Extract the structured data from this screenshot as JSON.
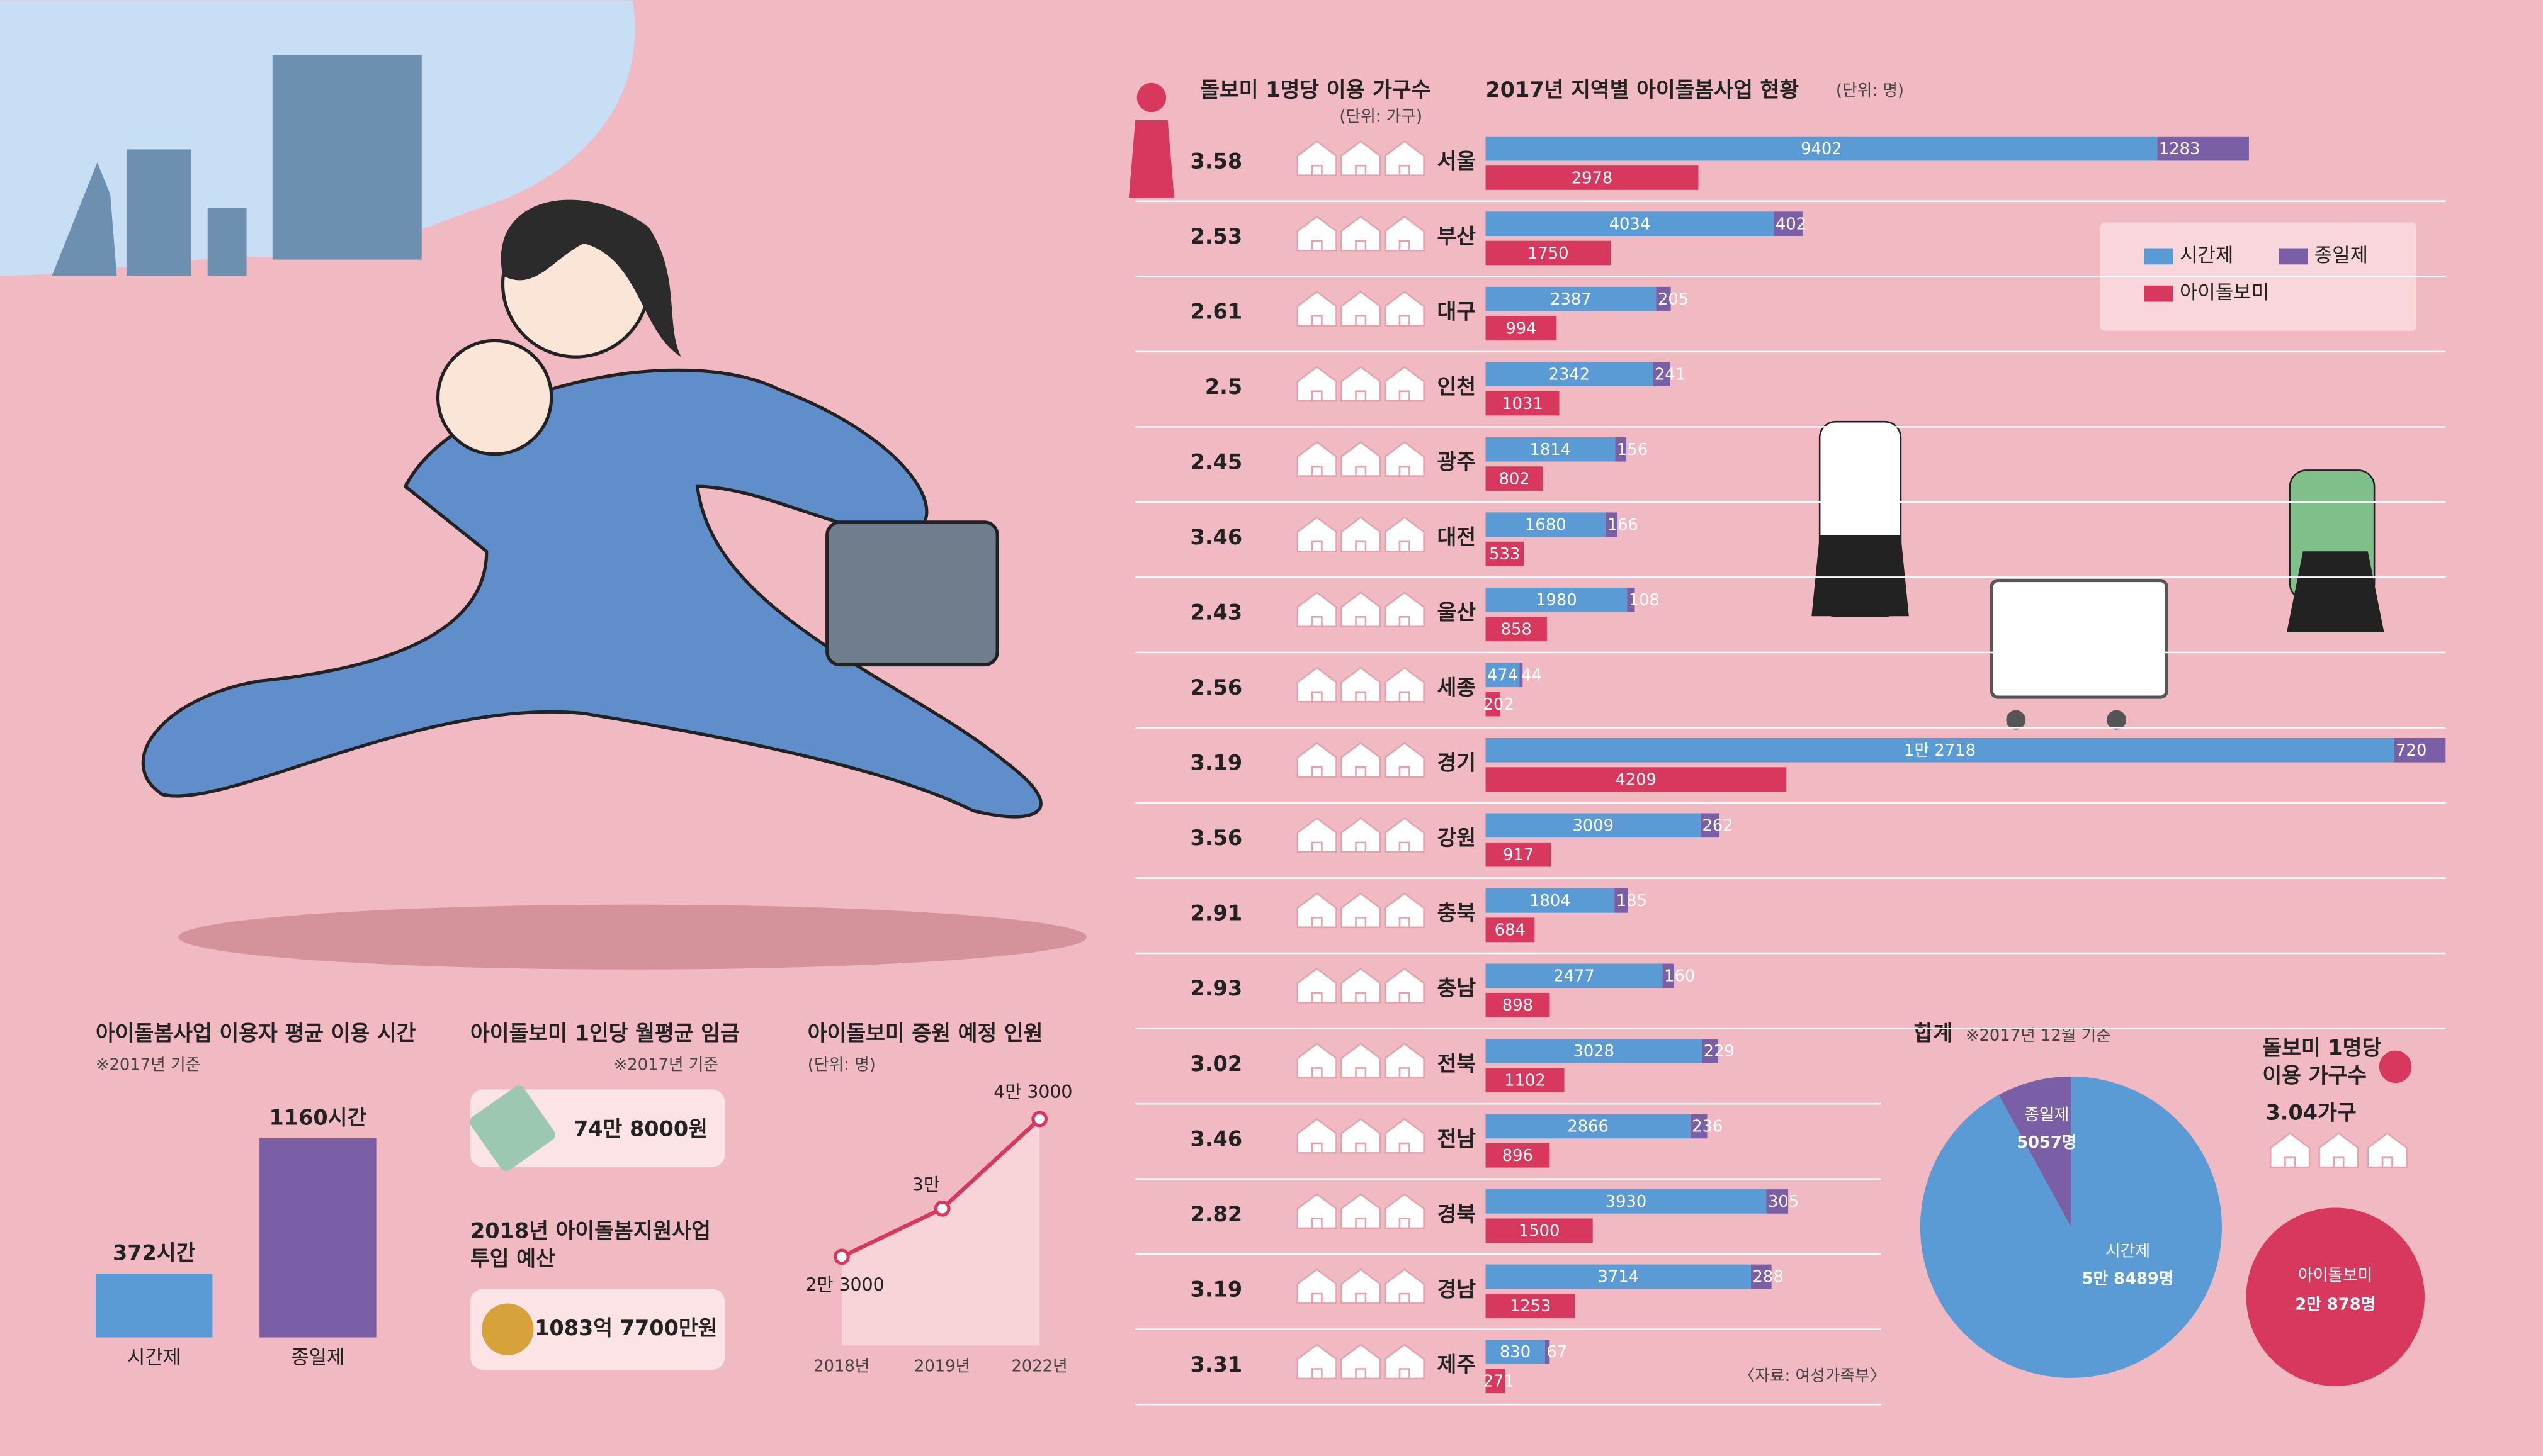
{
  "regional": {
    "title": "2017년 지역별 아이돌봄사업 현황",
    "unit": "(단위: 명)",
    "households_title": "돌보미 1명당 이용 가구수",
    "households_unit": "(단위: 가구)",
    "source": "〈자료: 여성가족부〉",
    "regions": [
      "서울",
      "부산",
      "대구",
      "인천",
      "광주",
      "대전",
      "울산",
      "세종",
      "경기",
      "강원",
      "충북",
      "충남",
      "전북",
      "전남",
      "경북",
      "경남",
      "제주"
    ],
    "households": [
      3.58,
      2.53,
      2.61,
      2.5,
      2.45,
      3.46,
      2.43,
      2.56,
      3.19,
      3.56,
      2.91,
      2.93,
      3.02,
      3.46,
      2.82,
      3.19,
      3.31
    ],
    "series": [
      {
        "name": "시간제",
        "color": "#5b9bd5",
        "values": [
          9402,
          4034,
          2387,
          2342,
          1814,
          1680,
          1980,
          474,
          12718,
          3009,
          1804,
          2477,
          3028,
          2866,
          3930,
          3714,
          830
        ],
        "value_labels": [
          "9402",
          "4034",
          "2387",
          "2342",
          "1814",
          "1680",
          "1980",
          "474",
          "1만 2718",
          "3009",
          "1804",
          "2477",
          "3028",
          "2866",
          "3930",
          "3714",
          "830"
        ]
      },
      {
        "name": "종일제",
        "color": "#7a5fa6",
        "values": [
          1283,
          402,
          205,
          241,
          156,
          166,
          108,
          44,
          720,
          262,
          185,
          160,
          229,
          236,
          305,
          288,
          67
        ]
      },
      {
        "name": "아이돌보미",
        "color": "#d9385e",
        "values": [
          2978,
          1750,
          994,
          1031,
          802,
          533,
          858,
          202,
          4209,
          917,
          684,
          898,
          1102,
          896,
          1500,
          1253,
          271
        ]
      }
    ]
  },
  "usage_time": {
    "title": "아이돌봄사업 이용자 평균 이용 시간",
    "note": "※2017년 기준",
    "categories": [
      "시간제",
      "종일제"
    ],
    "values": [
      372,
      1160
    ],
    "value_labels": [
      "372시간",
      "1160시간"
    ],
    "colors": [
      "#5b9bd5",
      "#7a5fa6"
    ]
  },
  "wage": {
    "title": "아이돌보미 1인당 월평균 임금",
    "note": "※2017년 기준",
    "amount": "74만 8000원"
  },
  "budget": {
    "title_lines": [
      "2018년 아이돌봄지원사업",
      "투입 예산"
    ],
    "amount": "1083억 7700만원"
  },
  "increase": {
    "title": "아이돌보미 증원 예정 인원",
    "unit": "(단위: 명)",
    "categories": [
      "2018년",
      "2019년",
      "2022년"
    ],
    "values": [
      23000,
      30000,
      43000
    ],
    "value_labels": [
      "2만 3000",
      "3만",
      "4만 3000"
    ],
    "color": "#d9385e"
  },
  "total": {
    "title": "합계",
    "note": "※2017년 12월 기준",
    "slices": [
      {
        "name": "종일제",
        "value": 5057,
        "label": "5057명",
        "color": "#7a5fa6"
      },
      {
        "name": "시간제",
        "value": 58489,
        "label": "5만 8489명",
        "color": "#5b9bd5"
      }
    ],
    "households_title_lines": [
      "돌보미 1명당",
      "이용 가구수"
    ],
    "households": 3.04,
    "households_label": "3.04가구",
    "caregivers": {
      "name": "아이돌보미",
      "value": 20878,
      "label": "2만 878명",
      "color": "#d9385e"
    }
  }
}
